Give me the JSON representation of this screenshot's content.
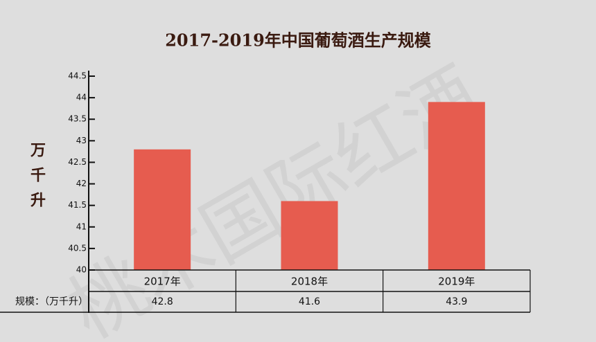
{
  "chart_data": {
    "type": "bar",
    "title": "2017-2019年中国葡萄酒生产规模",
    "y_label": "万千升",
    "categories": [
      "2017年",
      "2018年",
      "2019年"
    ],
    "values": [
      42.8,
      41.6,
      43.9
    ],
    "color": "#e65c4f",
    "ylim": [
      40,
      44.5
    ],
    "yticks": [
      40,
      40.5,
      41,
      41.5,
      42,
      42.5,
      43,
      43.5,
      44,
      44.5
    ],
    "table_label": "规模：（万千升）",
    "watermark": "桃木国际红酒"
  }
}
